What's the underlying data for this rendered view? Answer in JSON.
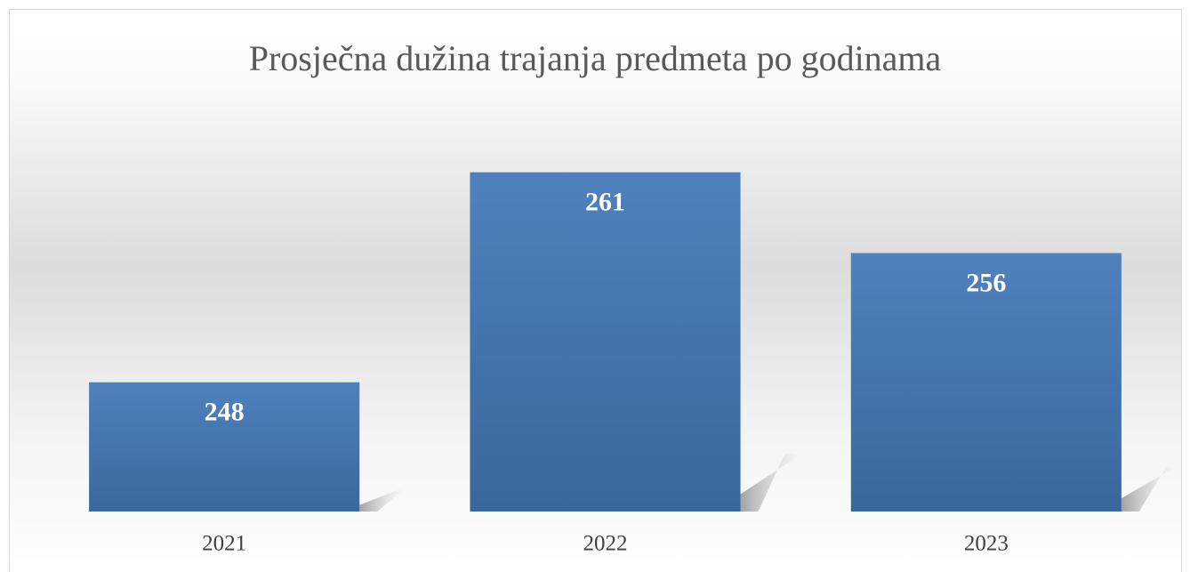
{
  "chart_data": {
    "type": "bar",
    "title": "Prosječna dužina trajanja predmeta po godinama",
    "categories": [
      "2021",
      "2022",
      "2023"
    ],
    "values": [
      248,
      261,
      256
    ],
    "color": "#4f81bd",
    "ylim": [
      240,
      265
    ]
  }
}
